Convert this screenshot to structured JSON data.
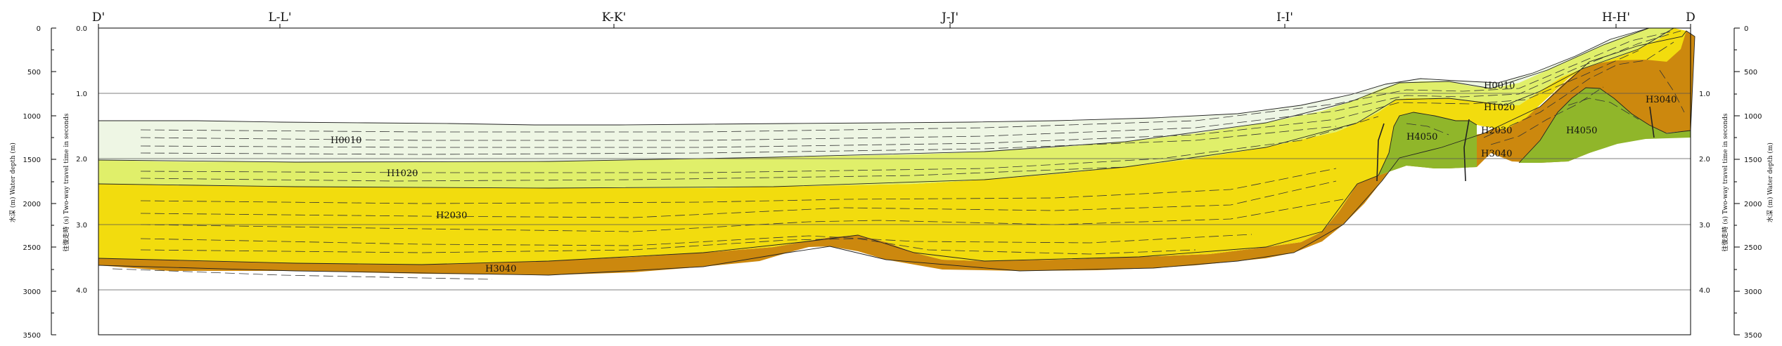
{
  "section_markers": [
    "D'",
    "L-L'",
    "K-K'",
    "J-J'",
    "I-I'",
    "H-H'",
    "D"
  ],
  "depth_ticks": [
    "0",
    "500",
    "1000",
    "1500",
    "2000",
    "2500",
    "3000",
    "3500"
  ],
  "twt_ticks": [
    "0.0",
    "1.0",
    "2.0",
    "3.0",
    "4.0"
  ],
  "horizons": {
    "h0010": "H0010",
    "h1020": "H1020",
    "h2030": "H2030",
    "h3040": "H3040",
    "h4050": "H4050"
  },
  "left_axis": {
    "depth_label": "水深 (m)   Water depth (m)",
    "twt_label": "往復走時 (s)   Two-way travel time in seconds"
  },
  "right_axis": {
    "twt_label": "往復走時 (s)   Two-way travel time in seconds",
    "depth_label": "水深 (m)   Water depth (m)"
  },
  "colors": {
    "h0010_fill": "#eef6e4",
    "h1020_fill": "#e0ef6a",
    "h2030_fill": "#f2dc0e",
    "h3040_fill": "#cc880e",
    "h4050_fill": "#90b62a"
  }
}
